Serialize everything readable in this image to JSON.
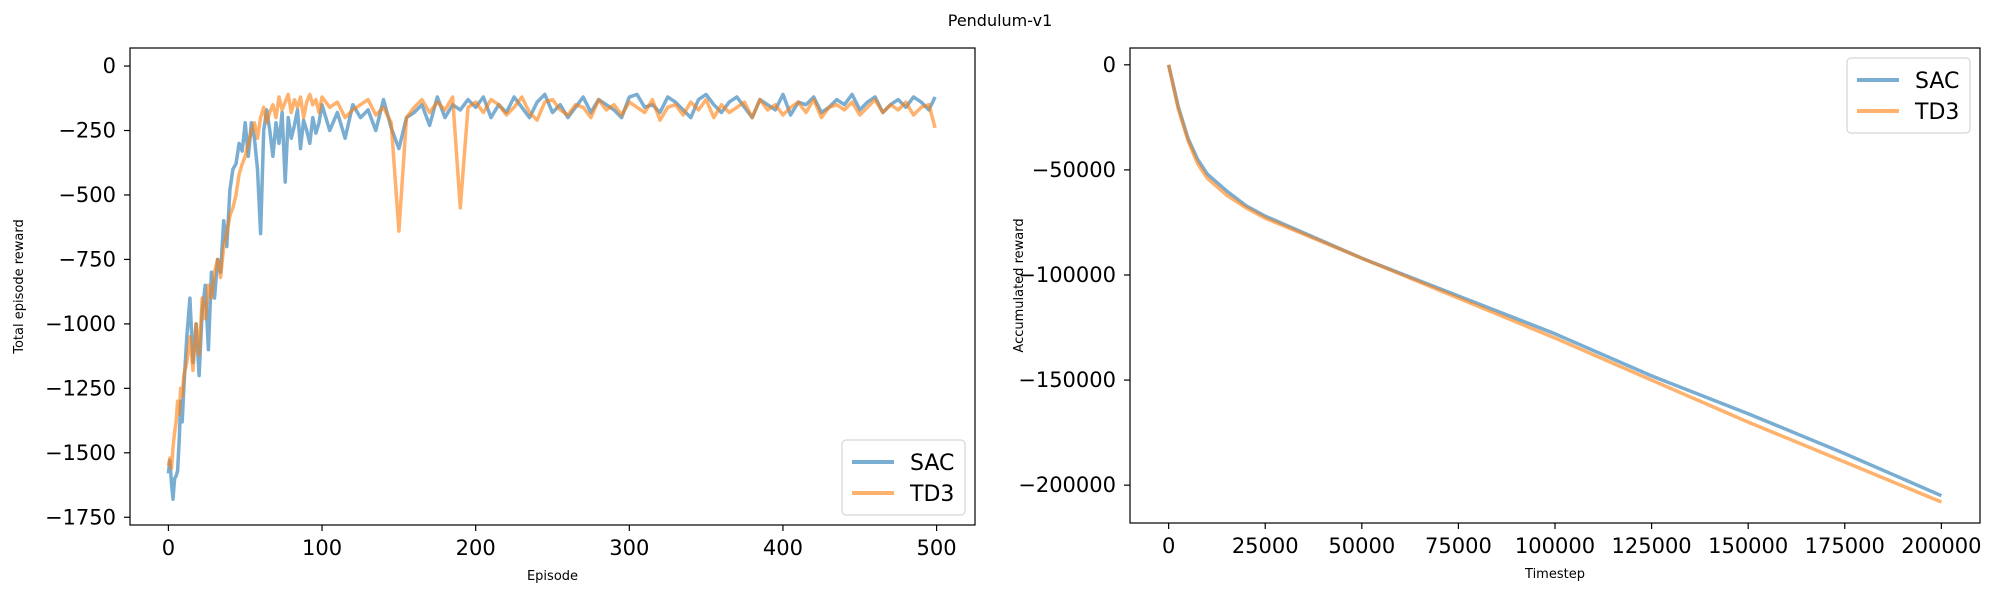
{
  "figure": {
    "suptitle": "Pendulum-v1"
  },
  "colors": {
    "sac": "#1f77b4",
    "td3": "#ff7f0e"
  },
  "chart_data": [
    {
      "type": "line",
      "title": "",
      "xlabel": "Episode",
      "ylabel": "Total episode reward",
      "xlim": [
        -25,
        525
      ],
      "ylim": [
        -1780,
        70
      ],
      "xticks": [
        0,
        100,
        200,
        300,
        400,
        500
      ],
      "yticks": [
        0,
        -250,
        -500,
        -750,
        -1000,
        -1250,
        -1500,
        -1750
      ],
      "xtick_labels": [
        "0",
        "100",
        "200",
        "300",
        "400",
        "500"
      ],
      "ytick_labels": [
        "0",
        "−250",
        "−500",
        "−750",
        "−1000",
        "−1250",
        "−1500",
        "−1750"
      ],
      "grid": false,
      "legend_position": "lower right",
      "series": [
        {
          "name": "SAC",
          "x": [
            0,
            1,
            2,
            3,
            4,
            5,
            6,
            7,
            8,
            9,
            10,
            12,
            14,
            16,
            18,
            20,
            22,
            24,
            26,
            28,
            30,
            32,
            34,
            36,
            38,
            40,
            42,
            44,
            46,
            48,
            50,
            52,
            54,
            56,
            58,
            60,
            62,
            64,
            66,
            68,
            70,
            72,
            74,
            76,
            78,
            80,
            82,
            84,
            86,
            88,
            90,
            92,
            94,
            96,
            98,
            100,
            105,
            110,
            115,
            120,
            125,
            130,
            135,
            140,
            145,
            150,
            155,
            160,
            165,
            170,
            175,
            180,
            185,
            190,
            195,
            200,
            205,
            210,
            215,
            220,
            225,
            230,
            235,
            240,
            245,
            250,
            255,
            260,
            265,
            270,
            275,
            280,
            285,
            290,
            295,
            300,
            305,
            310,
            315,
            320,
            325,
            330,
            335,
            340,
            345,
            350,
            355,
            360,
            365,
            370,
            375,
            380,
            385,
            390,
            395,
            400,
            405,
            410,
            415,
            420,
            425,
            430,
            435,
            440,
            445,
            450,
            455,
            460,
            465,
            470,
            475,
            480,
            485,
            490,
            495,
            499
          ],
          "y": [
            -1580,
            -1530,
            -1620,
            -1680,
            -1600,
            -1590,
            -1570,
            -1450,
            -1300,
            -1380,
            -1250,
            -1050,
            -900,
            -1150,
            -1000,
            -1200,
            -950,
            -850,
            -1100,
            -800,
            -900,
            -750,
            -800,
            -600,
            -700,
            -480,
            -400,
            -380,
            -300,
            -330,
            -220,
            -350,
            -220,
            -280,
            -400,
            -650,
            -250,
            -170,
            -250,
            -350,
            -220,
            -300,
            -180,
            -450,
            -200,
            -280,
            -230,
            -170,
            -320,
            -210,
            -250,
            -300,
            -200,
            -260,
            -220,
            -150,
            -250,
            -180,
            -280,
            -150,
            -200,
            -170,
            -250,
            -130,
            -240,
            -320,
            -200,
            -180,
            -150,
            -230,
            -120,
            -200,
            -150,
            -170,
            -130,
            -160,
            -120,
            -200,
            -150,
            -180,
            -120,
            -160,
            -200,
            -140,
            -110,
            -180,
            -150,
            -200,
            -160,
            -120,
            -180,
            -130,
            -150,
            -170,
            -200,
            -120,
            -110,
            -160,
            -150,
            -180,
            -120,
            -140,
            -170,
            -200,
            -130,
            -110,
            -150,
            -180,
            -140,
            -120,
            -160,
            -200,
            -130,
            -150,
            -170,
            -110,
            -190,
            -140,
            -150,
            -120,
            -180,
            -160,
            -130,
            -150,
            -110,
            -170,
            -140,
            -120,
            -180,
            -150,
            -130,
            -160,
            -120,
            -140,
            -170,
            -120
          ],
          "color": "#1f77b4"
        },
        {
          "name": "TD3",
          "x": [
            0,
            1,
            2,
            3,
            4,
            5,
            6,
            7,
            8,
            9,
            10,
            12,
            14,
            16,
            18,
            20,
            22,
            24,
            26,
            28,
            30,
            32,
            34,
            36,
            38,
            40,
            42,
            44,
            46,
            48,
            50,
            52,
            54,
            56,
            58,
            60,
            62,
            64,
            66,
            68,
            70,
            72,
            74,
            76,
            78,
            80,
            82,
            84,
            86,
            88,
            90,
            92,
            94,
            96,
            98,
            100,
            105,
            110,
            115,
            120,
            125,
            130,
            135,
            140,
            145,
            150,
            155,
            160,
            165,
            170,
            175,
            180,
            185,
            190,
            195,
            200,
            205,
            210,
            215,
            220,
            225,
            230,
            235,
            240,
            245,
            250,
            255,
            260,
            265,
            270,
            275,
            280,
            285,
            290,
            295,
            300,
            305,
            310,
            315,
            320,
            325,
            330,
            335,
            340,
            345,
            350,
            355,
            360,
            365,
            370,
            375,
            380,
            385,
            390,
            395,
            400,
            405,
            410,
            415,
            420,
            425,
            430,
            435,
            440,
            445,
            450,
            455,
            460,
            465,
            470,
            475,
            480,
            485,
            490,
            495,
            499
          ],
          "y": [
            -1550,
            -1520,
            -1560,
            -1480,
            -1420,
            -1380,
            -1300,
            -1350,
            -1250,
            -1280,
            -1200,
            -1150,
            -1050,
            -1180,
            -1000,
            -1120,
            -900,
            -980,
            -850,
            -900,
            -800,
            -750,
            -820,
            -700,
            -650,
            -580,
            -550,
            -500,
            -420,
            -380,
            -350,
            -300,
            -250,
            -220,
            -280,
            -200,
            -160,
            -220,
            -180,
            -150,
            -200,
            -120,
            -170,
            -140,
            -110,
            -180,
            -130,
            -160,
            -120,
            -200,
            -140,
            -110,
            -150,
            -130,
            -180,
            -120,
            -160,
            -140,
            -200,
            -170,
            -150,
            -130,
            -190,
            -160,
            -220,
            -640,
            -200,
            -160,
            -130,
            -180,
            -140,
            -170,
            -120,
            -550,
            -160,
            -140,
            -180,
            -130,
            -150,
            -190,
            -160,
            -120,
            -180,
            -210,
            -140,
            -130,
            -170,
            -190,
            -150,
            -160,
            -200,
            -130,
            -170,
            -150,
            -190,
            -140,
            -160,
            -180,
            -130,
            -210,
            -160,
            -150,
            -190,
            -140,
            -170,
            -130,
            -200,
            -150,
            -180,
            -160,
            -140,
            -200,
            -130,
            -170,
            -150,
            -190,
            -160,
            -140,
            -180,
            -130,
            -200,
            -160,
            -150,
            -170,
            -140,
            -190,
            -160,
            -130,
            -180,
            -150,
            -170,
            -140,
            -190,
            -160,
            -150,
            -240
          ],
          "color": "#ff7f0e"
        }
      ]
    },
    {
      "type": "line",
      "title": "",
      "xlabel": "Timestep",
      "ylabel": "Accumulated reward",
      "xlim": [
        -10000,
        210000
      ],
      "ylim": [
        -218000,
        8000
      ],
      "xticks": [
        0,
        25000,
        50000,
        75000,
        100000,
        125000,
        150000,
        175000,
        200000
      ],
      "yticks": [
        0,
        -50000,
        -100000,
        -150000,
        -200000
      ],
      "xtick_labels": [
        "0",
        "25000",
        "50000",
        "75000",
        "100000",
        "125000",
        "150000",
        "175000",
        "200000"
      ],
      "ytick_labels": [
        "0",
        "−50000",
        "−100000",
        "−150000",
        "−200000"
      ],
      "grid": false,
      "legend_position": "upper right",
      "series": [
        {
          "name": "SAC",
          "x": [
            0,
            2500,
            5000,
            7500,
            10000,
            15000,
            20000,
            25000,
            50000,
            75000,
            100000,
            125000,
            150000,
            175000,
            200000
          ],
          "y": [
            0,
            -20000,
            -35000,
            -45000,
            -52000,
            -60000,
            -67000,
            -72000,
            -92000,
            -110000,
            -128000,
            -148000,
            -166000,
            -185000,
            -205000
          ],
          "color": "#1f77b4"
        },
        {
          "name": "TD3",
          "x": [
            0,
            2500,
            5000,
            7500,
            10000,
            15000,
            20000,
            25000,
            50000,
            75000,
            100000,
            125000,
            150000,
            175000,
            200000
          ],
          "y": [
            0,
            -21000,
            -36000,
            -47000,
            -54000,
            -62000,
            -68000,
            -73000,
            -92000,
            -111000,
            -130000,
            -150000,
            -170000,
            -189000,
            -208000
          ],
          "color": "#ff7f0e"
        }
      ]
    }
  ]
}
